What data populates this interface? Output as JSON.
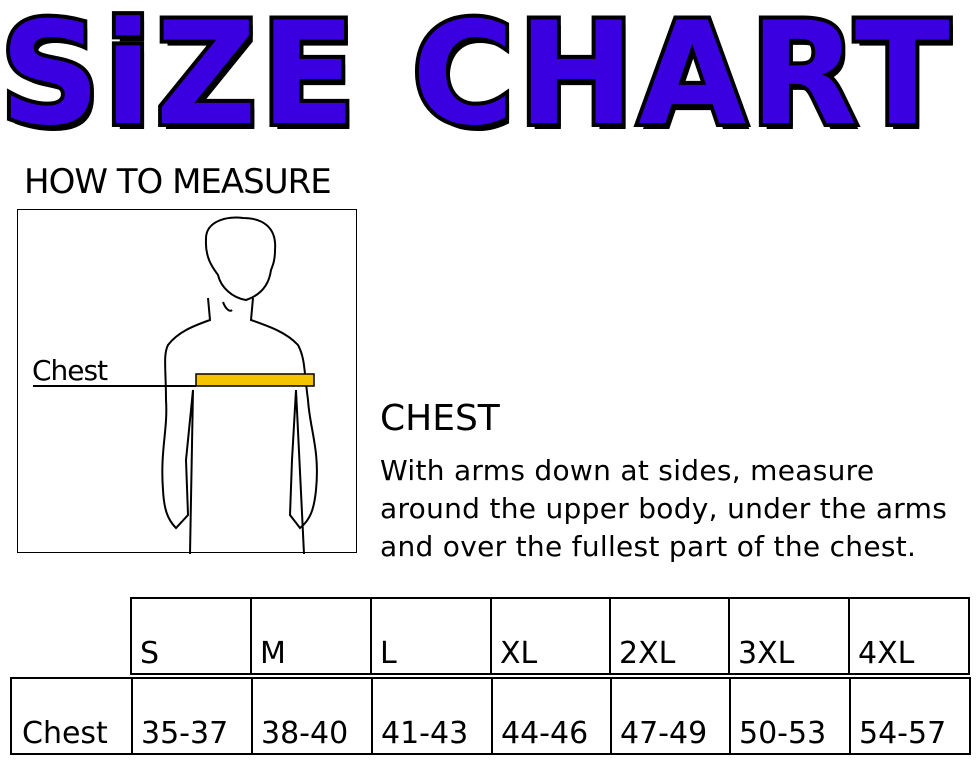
{
  "title": "SiZE CHART",
  "how_to_measure": "HOW TO MEASURE",
  "figure": {
    "label": "Chest",
    "tape_color": "#f5c400"
  },
  "chest_heading": "CHEST",
  "description": "With arms down at sides, measure around the upper body, under the arms and over the fullest part of the chest.",
  "title_color": "#3a00e0",
  "table": {
    "sizes": [
      "S",
      "M",
      "L",
      "XL",
      "2XL",
      "3XL",
      "4XL"
    ],
    "row_label": "Chest",
    "values": [
      "35-37",
      "38-40",
      "41-43",
      "44-46",
      "47-49",
      "50-53",
      "54-57"
    ]
  }
}
